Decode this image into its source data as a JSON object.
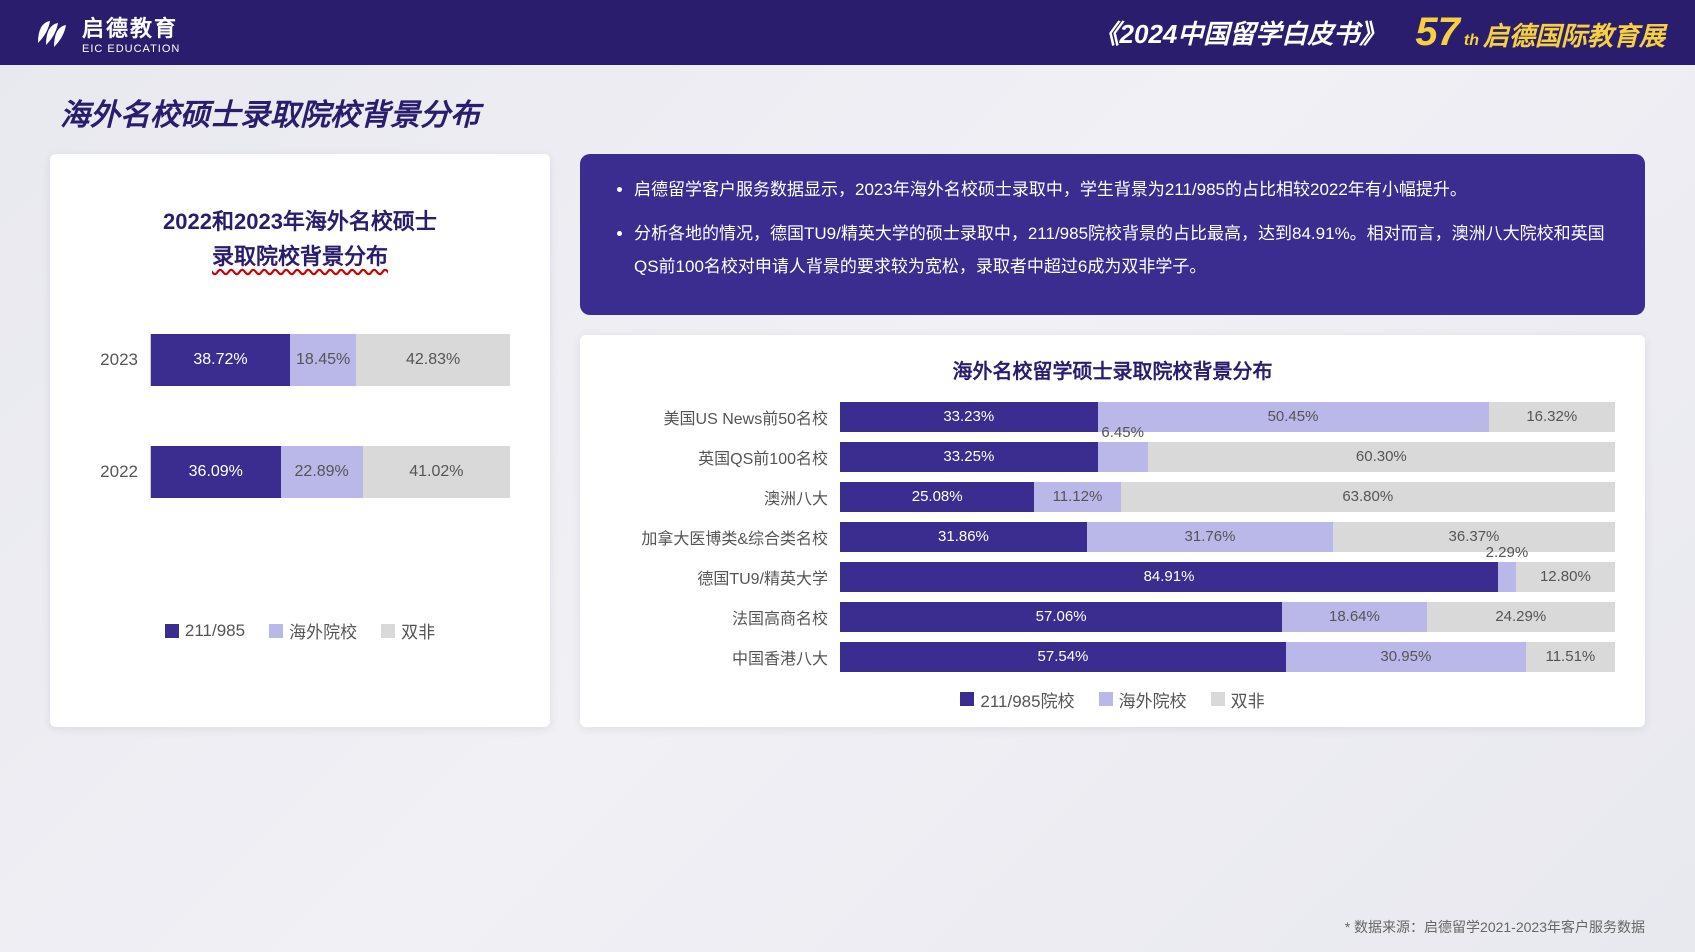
{
  "header": {
    "logo_cn": "启德教育",
    "logo_en": "EIC EDUCATION",
    "whitepaper": "《2024中国留学白皮书》",
    "expo_num": "57",
    "expo_th": "th",
    "expo_text": "启德国际教育展"
  },
  "page_title": "海外名校硕士录取院校背景分布",
  "colors": {
    "series1": "#3b2c8f",
    "series2": "#b9b8e8",
    "series3": "#d9d9d9",
    "text_on_dark": "#ffffff",
    "text_on_light": "#555555"
  },
  "chart1": {
    "title_line1": "2022和2023年海外名校硕士",
    "title_line2": "录取院校背景分布",
    "legend": [
      "211/985",
      "海外院校",
      "双非"
    ],
    "rows": [
      {
        "label": "2023",
        "values": [
          38.72,
          18.45,
          42.83
        ],
        "labels": [
          "38.72%",
          "18.45%",
          "42.83%"
        ]
      },
      {
        "label": "2022",
        "values": [
          36.09,
          22.89,
          41.02
        ],
        "labels": [
          "36.09%",
          "22.89%",
          "41.02%"
        ]
      }
    ]
  },
  "info": {
    "bullets": [
      "启德留学客户服务数据显示，2023年海外名校硕士录取中，学生背景为211/985的占比相较2022年有小幅提升。",
      "分析各地的情况，德国TU9/精英大学的硕士录取中，211/985院校背景的占比最高，达到84.91%。相对而言，澳洲八大院校和英国QS前100名校对申请人背景的要求较为宽松，录取者中超过6成为双非学子。"
    ]
  },
  "chart2": {
    "title": "海外名校留学硕士录取院校背景分布",
    "legend": [
      "211/985院校",
      "海外院校",
      "双非"
    ],
    "rows": [
      {
        "label": "美国US News前50名校",
        "values": [
          33.23,
          50.45,
          16.32
        ],
        "labels": [
          "33.23%",
          "50.45%",
          "16.32%"
        ]
      },
      {
        "label": "英国QS前100名校",
        "values": [
          33.25,
          6.45,
          60.3
        ],
        "labels": [
          "33.25%",
          "6.45%",
          "60.30%"
        ]
      },
      {
        "label": "澳洲八大",
        "values": [
          25.08,
          11.12,
          63.8
        ],
        "labels": [
          "25.08%",
          "11.12%",
          "63.80%"
        ]
      },
      {
        "label": "加拿大医博类&综合类名校",
        "values": [
          31.86,
          31.76,
          36.37
        ],
        "labels": [
          "31.86%",
          "31.76%",
          "36.37%"
        ]
      },
      {
        "label": "德国TU9/精英大学",
        "values": [
          84.91,
          2.29,
          12.8
        ],
        "labels": [
          "84.91%",
          "2.29%",
          "12.80%"
        ]
      },
      {
        "label": "法国高商名校",
        "values": [
          57.06,
          18.64,
          24.29
        ],
        "labels": [
          "57.06%",
          "18.64%",
          "24.29%"
        ]
      },
      {
        "label": "中国香港八大",
        "values": [
          57.54,
          30.95,
          11.51
        ],
        "labels": [
          "57.54%",
          "30.95%",
          "11.51%"
        ]
      }
    ]
  },
  "footnote": "* 数据来源：启德留学2021-2023年客户服务数据"
}
